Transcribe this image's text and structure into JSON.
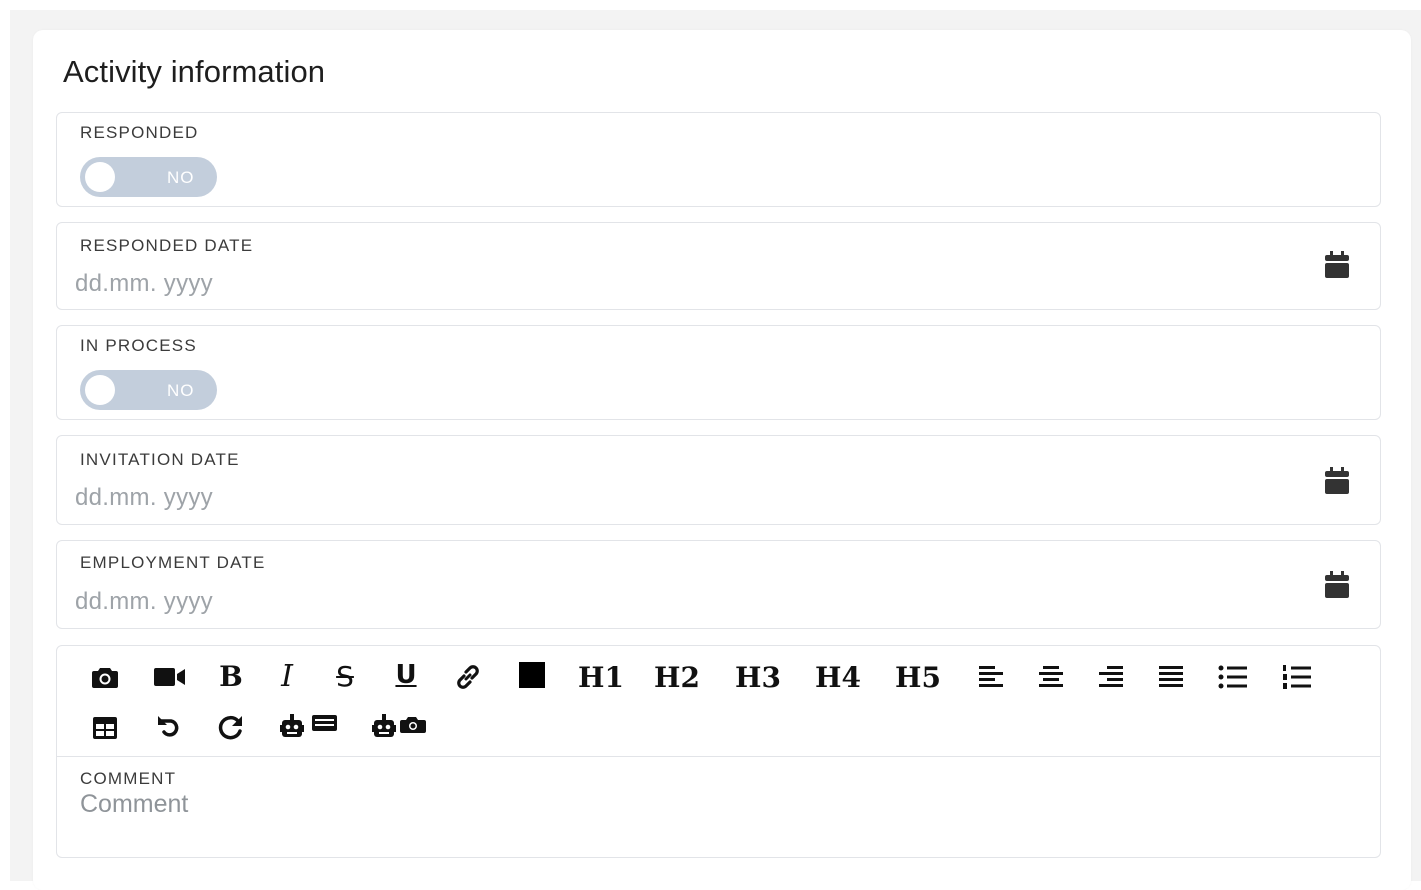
{
  "section": {
    "title": "Activity information"
  },
  "fields": {
    "responded": {
      "label": "RESPONDED",
      "toggle_text": "NO"
    },
    "responded_date": {
      "label": "RESPONDED DATE",
      "placeholder": "dd.mm. yyyy"
    },
    "in_process": {
      "label": "IN PROCESS",
      "toggle_text": "NO"
    },
    "invitation_date": {
      "label": "INVITATION DATE",
      "placeholder": "dd.mm. yyyy"
    },
    "employment_date": {
      "label": "EMPLOYMENT DATE",
      "placeholder": "dd.mm. yyyy"
    }
  },
  "editor": {
    "headings": [
      "H1",
      "H2",
      "H3",
      "H4",
      "H5"
    ],
    "icons": [
      "camera-icon",
      "video-icon",
      "bold-icon",
      "italic-icon",
      "strikethrough-icon",
      "underline-icon",
      "link-icon",
      "color-icon",
      "align-left-icon",
      "align-center-icon",
      "align-right-icon",
      "align-justify-icon",
      "bullet-list-icon",
      "numbered-list-icon",
      "table-icon",
      "undo-icon",
      "redo-icon",
      "ai-text-icon",
      "ai-image-icon"
    ],
    "bold_glyph": "B",
    "italic_glyph": "I",
    "strike_glyph": "S",
    "underline_glyph": "U",
    "comment_label": "COMMENT",
    "comment_placeholder": "Comment"
  },
  "colors": {
    "toggle_off": "#c3cedc",
    "border": "#e2e4e8",
    "placeholder": "#9ea3a8"
  }
}
